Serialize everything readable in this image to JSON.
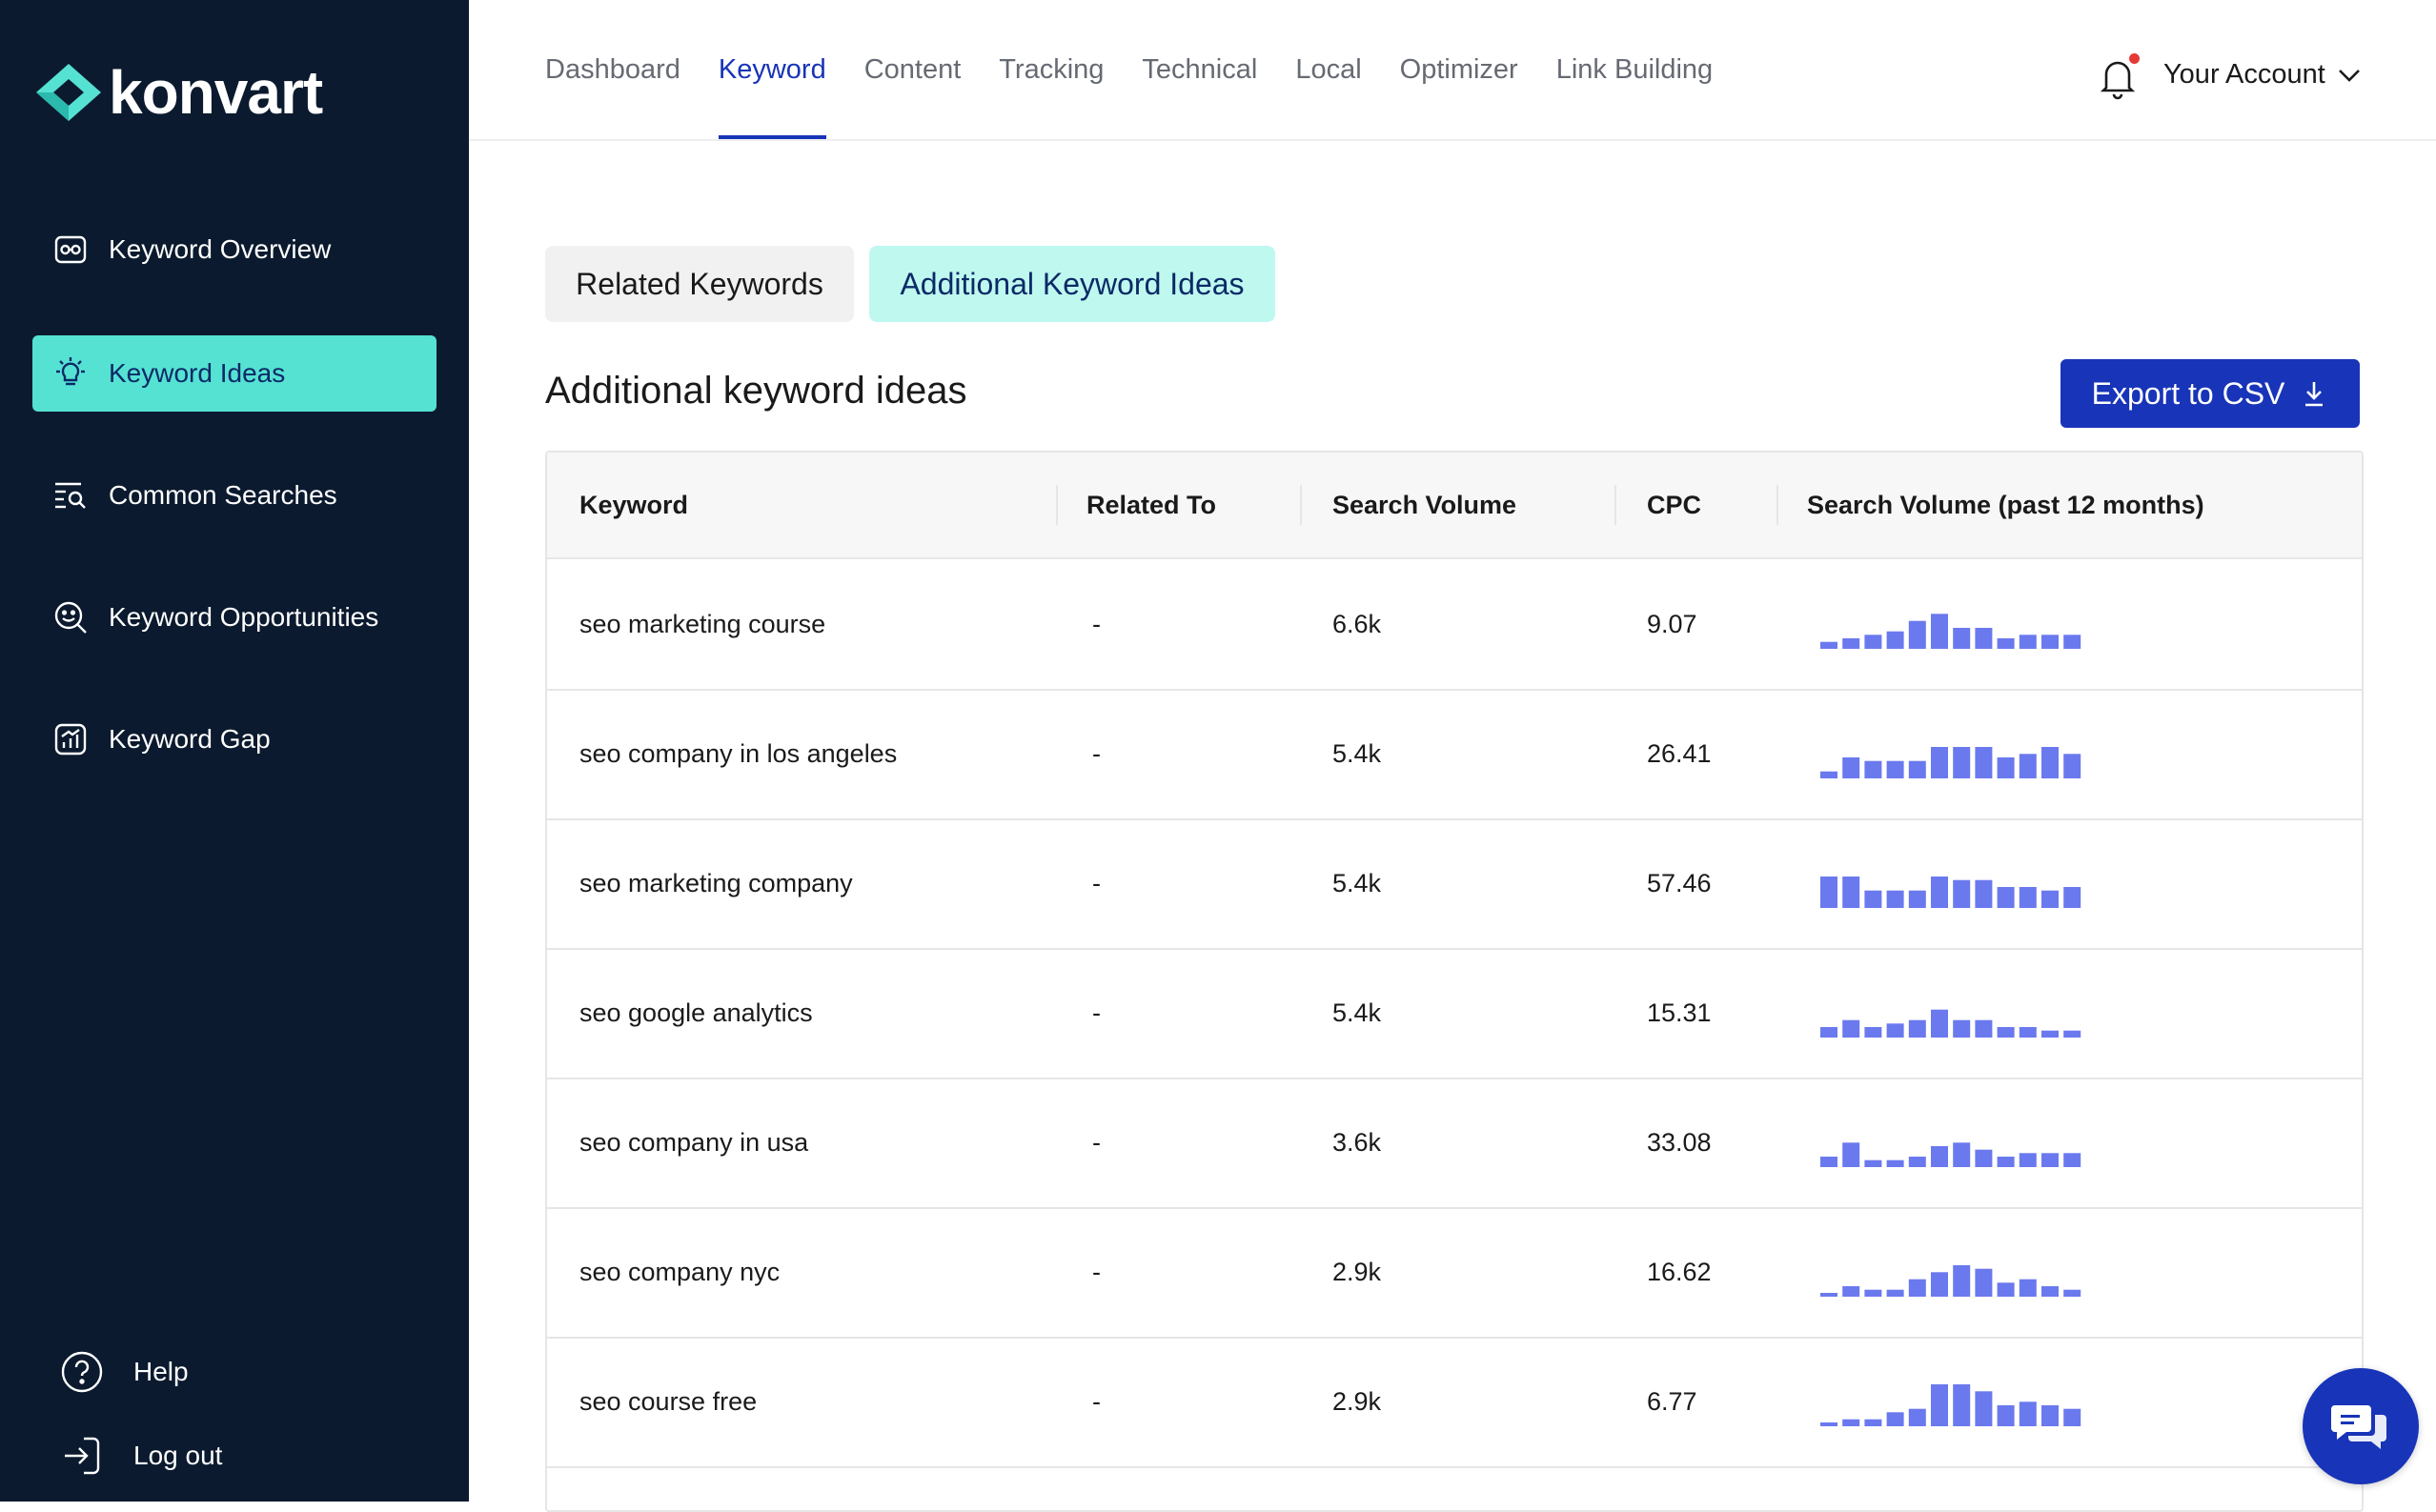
{
  "brand": {
    "name": "konvart",
    "accent": "#55e2d3",
    "primary": "#1834b8",
    "sidebar_bg": "#0b1a2e"
  },
  "sidebar": {
    "items": [
      {
        "label": "Keyword Overview",
        "icon": "keyword-overview-icon",
        "active": false
      },
      {
        "label": "Keyword Ideas",
        "icon": "lightbulb-icon",
        "active": true
      },
      {
        "label": "Common Searches",
        "icon": "search-list-icon",
        "active": false
      },
      {
        "label": "Keyword Opportunities",
        "icon": "search-opportunities-icon",
        "active": false
      },
      {
        "label": "Keyword Gap",
        "icon": "chart-gap-icon",
        "active": false
      }
    ],
    "bottom": [
      {
        "label": "Help",
        "icon": "help-icon"
      },
      {
        "label": "Log out",
        "icon": "logout-icon"
      }
    ]
  },
  "topnav": {
    "tabs": [
      {
        "label": "Dashboard",
        "active": false
      },
      {
        "label": "Keyword",
        "active": true
      },
      {
        "label": "Content",
        "active": false
      },
      {
        "label": "Tracking",
        "active": false
      },
      {
        "label": "Technical",
        "active": false
      },
      {
        "label": "Local",
        "active": false
      },
      {
        "label": "Optimizer",
        "active": false
      },
      {
        "label": "Link Building",
        "active": false
      }
    ],
    "account_label": "Your Account",
    "notification_icon": "bell-icon"
  },
  "subtabs": [
    {
      "label": "Related Keywords",
      "active": false
    },
    {
      "label": "Additional Keyword Ideas",
      "active": true
    }
  ],
  "section": {
    "title": "Additional keyword ideas",
    "export_label": "Export to CSV"
  },
  "table": {
    "columns": [
      "Keyword",
      "Related To",
      "Search Volume",
      "CPC",
      "Search Volume (past 12 months)"
    ],
    "rows": [
      {
        "keyword": "seo marketing course",
        "related": "-",
        "volume": "6.6k",
        "cpc": "9.07",
        "trend": [
          2,
          3,
          4,
          5,
          8,
          10,
          6,
          6,
          3,
          4,
          4,
          4
        ]
      },
      {
        "keyword": "seo company in los angeles",
        "related": "-",
        "volume": "5.4k",
        "cpc": "26.41",
        "trend": [
          2,
          6,
          5,
          5,
          5,
          9,
          9,
          9,
          6,
          7,
          9,
          7
        ]
      },
      {
        "keyword": "seo marketing company",
        "related": "-",
        "volume": "5.4k",
        "cpc": "57.46",
        "trend": [
          9,
          9,
          5,
          5,
          5,
          9,
          8,
          8,
          6,
          6,
          5,
          6
        ]
      },
      {
        "keyword": "seo google analytics",
        "related": "-",
        "volume": "5.4k",
        "cpc": "15.31",
        "trend": [
          3,
          5,
          3,
          4,
          5,
          8,
          5,
          5,
          3,
          3,
          2,
          2
        ]
      },
      {
        "keyword": "seo company in usa",
        "related": "-",
        "volume": "3.6k",
        "cpc": "33.08",
        "trend": [
          3,
          7,
          2,
          2,
          3,
          6,
          7,
          5,
          3,
          4,
          4,
          4
        ]
      },
      {
        "keyword": "seo company nyc",
        "related": "-",
        "volume": "2.9k",
        "cpc": "16.62",
        "trend": [
          1,
          3,
          2,
          2,
          5,
          7,
          9,
          8,
          4,
          5,
          3,
          2
        ]
      },
      {
        "keyword": "seo course free",
        "related": "-",
        "volume": "2.9k",
        "cpc": "6.77",
        "trend": [
          1,
          2,
          2,
          4,
          5,
          12,
          12,
          10,
          6,
          7,
          6,
          5
        ]
      }
    ]
  },
  "chat": {
    "icon": "chat-icon"
  }
}
